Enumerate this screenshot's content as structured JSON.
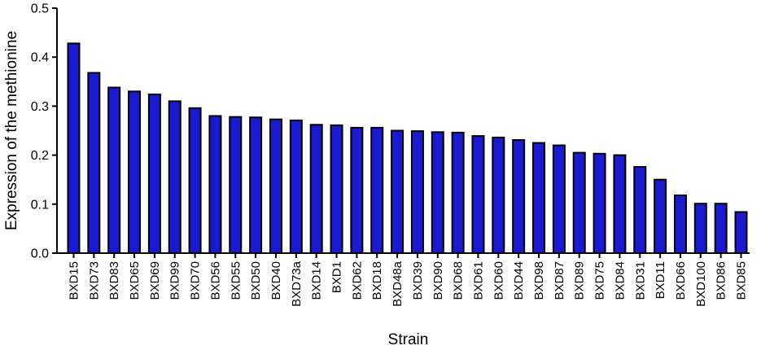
{
  "chart_data": {
    "type": "bar",
    "title": "",
    "xlabel": "Strain",
    "ylabel": "Expression of the methionine",
    "ylim": [
      0,
      0.5
    ],
    "yticks": [
      "0.0",
      "0.1",
      "0.2",
      "0.3",
      "0.4",
      "0.5"
    ],
    "grid": false,
    "legend": "none",
    "bar_color": "#1a1ad0",
    "bar_edge_color": "#000000",
    "categories": [
      "BXD15",
      "BXD73",
      "BXD83",
      "BXD65",
      "BXD69",
      "BXD99",
      "BXD70",
      "BXD56",
      "BXD55",
      "BXD50",
      "BXD40",
      "BXD73a",
      "BXD14",
      "BXD1",
      "BXD62",
      "BXD18",
      "BXD48a",
      "BXD39",
      "BXD90",
      "BXD68",
      "BXD61",
      "BXD60",
      "BXD44",
      "BXD98",
      "BXD87",
      "BXD89",
      "BXD75",
      "BXD84",
      "BXD31",
      "BXD11",
      "BXD66",
      "BXD100",
      "BXD86",
      "BXD85"
    ],
    "values": [
      0.428,
      0.368,
      0.338,
      0.33,
      0.324,
      0.31,
      0.296,
      0.28,
      0.278,
      0.277,
      0.273,
      0.271,
      0.262,
      0.261,
      0.256,
      0.256,
      0.25,
      0.249,
      0.247,
      0.246,
      0.239,
      0.236,
      0.231,
      0.225,
      0.22,
      0.205,
      0.203,
      0.2,
      0.176,
      0.15,
      0.118,
      0.101,
      0.101,
      0.084
    ]
  }
}
